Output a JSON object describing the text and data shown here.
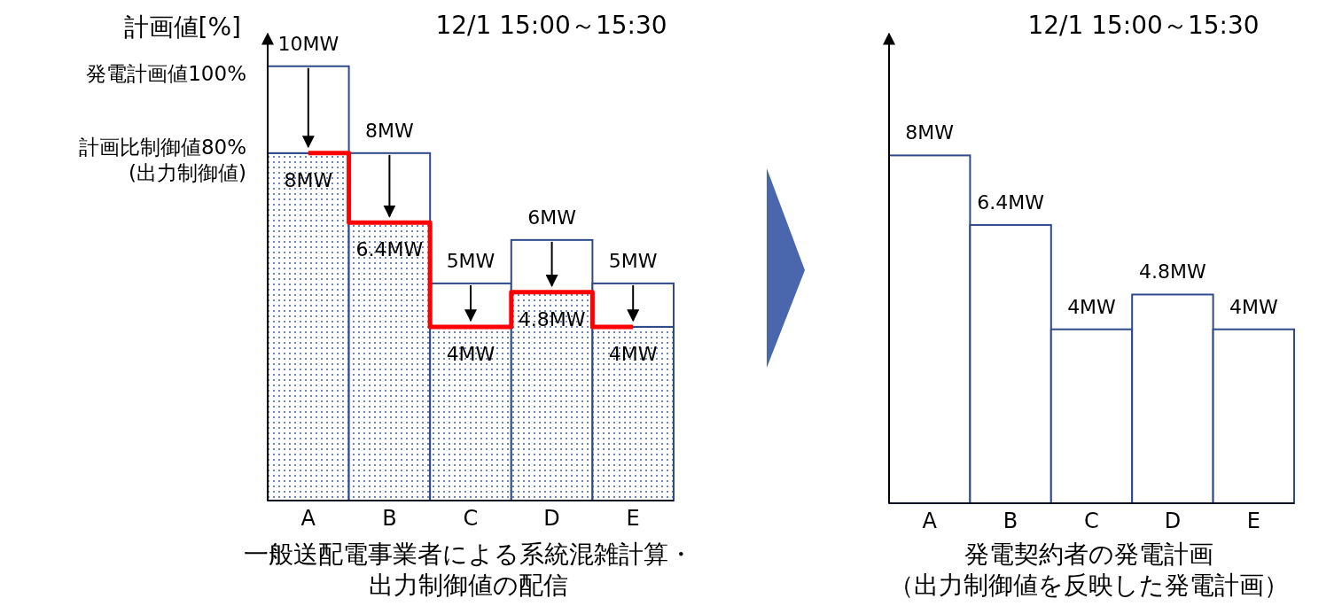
{
  "chart_data": [
    {
      "type": "bar",
      "title": "12/1 15:00～15:30",
      "ylabel": "計画値[%]",
      "xlabel": "一般送配電事業者による系統混雑計算・出力制御値の配信",
      "categories": [
        "A",
        "B",
        "C",
        "D",
        "E"
      ],
      "ylim": [
        0,
        10.75
      ],
      "annotations": [
        "発電計画値100%",
        "計画比制御値80%(出力制御値)"
      ],
      "series": [
        {
          "type": "bar",
          "color": "#2f4a8a",
          "values": [
            8,
            6.4,
            4,
            4.8,
            4
          ],
          "value_labels": [
            "8MW",
            "6.4MW",
            "4MW",
            "4.8MW",
            "4MW"
          ]
        },
        {
          "type": "bar",
          "color": "#ffffff",
          "values": [
            2,
            1.6,
            1,
            1.2,
            1
          ]
        },
        {
          "type": "step",
          "color": "#ff0000",
          "values": [
            8,
            6.4,
            4,
            4.8,
            4
          ]
        }
      ],
      "stacked": true,
      "totals": [
        "10MW",
        "8MW",
        "5MW",
        "6MW",
        "5MW"
      ]
    },
    {
      "type": "bar",
      "title": "12/1 15:00～15:30",
      "xlabel": "発電契約者の発電計画（出力制御値を反映した発電計画）",
      "categories": [
        "A",
        "B",
        "C",
        "D",
        "E"
      ],
      "ylim": [
        0,
        10.8
      ],
      "tick_labels": "x",
      "series": [
        {
          "type": "bar",
          "color": "#ffffff",
          "values": [
            8,
            6.4,
            4,
            4.8,
            4
          ],
          "value_labels": [
            "8MW",
            "6.4MW",
            "4MW",
            "4.8MW",
            "4MW"
          ]
        }
      ]
    }
  ]
}
